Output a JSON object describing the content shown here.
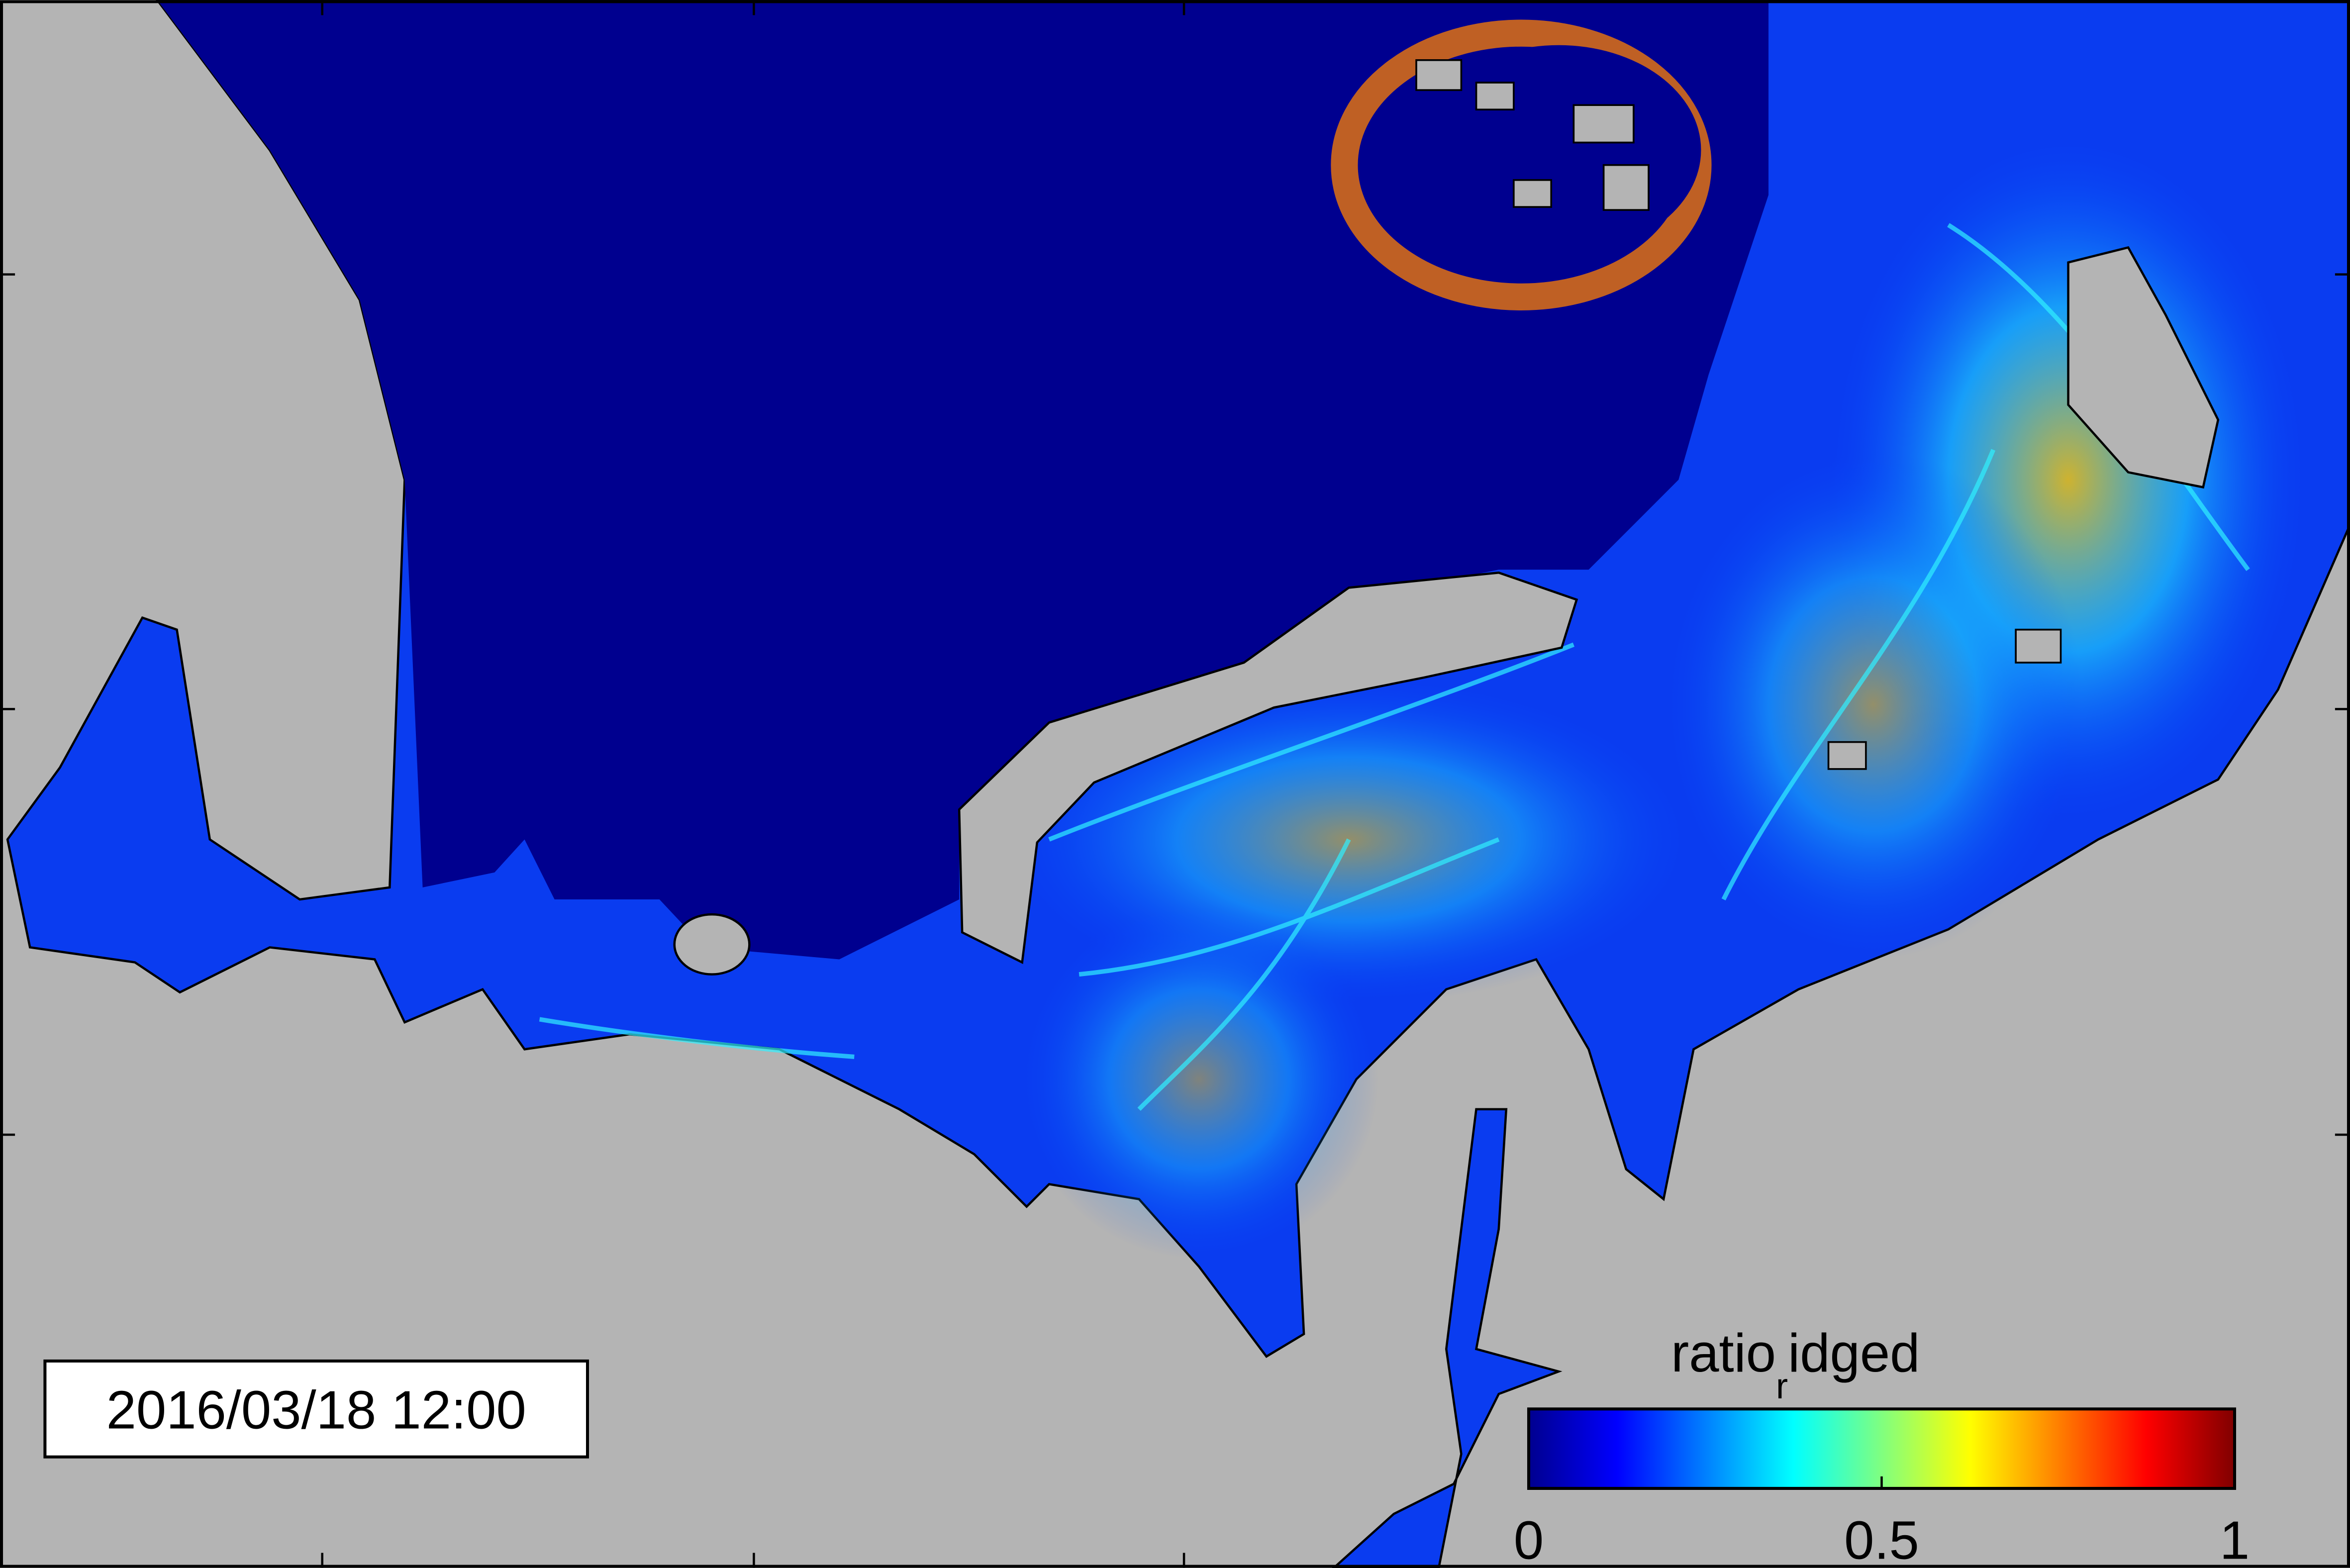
{
  "timestamp": "2016/03/18 12:00",
  "colorbar": {
    "label": "ratio",
    "label_subscript": "r",
    "label_rest": "idged",
    "colormap": "jet",
    "lim": [
      0,
      1
    ],
    "ticks": [
      0,
      0.5,
      1
    ]
  }
}
